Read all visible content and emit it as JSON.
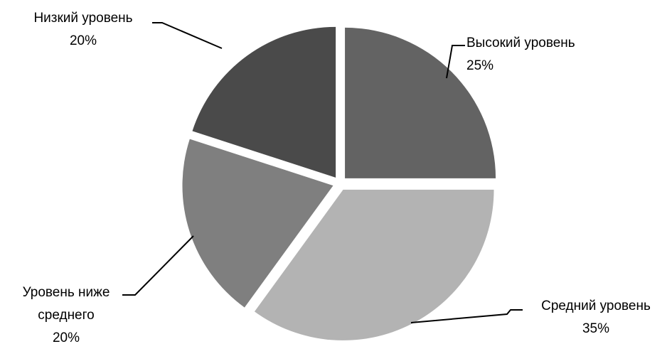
{
  "chart_data": {
    "type": "pie",
    "title": "",
    "start_angle_deg": 0,
    "direction": "clockwise",
    "legend": "none",
    "slices": [
      {
        "label": "Высокий уровень",
        "label_lines": [
          "Высокий уровень"
        ],
        "value": 25,
        "value_label": "25%",
        "color": "#636363"
      },
      {
        "label": "Средний уровень",
        "label_lines": [
          "Средний уровень"
        ],
        "value": 35,
        "value_label": "35%",
        "color": "#b3b3b3"
      },
      {
        "label": "Уровень ниже среднего",
        "label_lines": [
          "Уровень ниже",
          "среднего"
        ],
        "value": 20,
        "value_label": "20%",
        "color": "#7f7f7f"
      },
      {
        "label": "Низкий уровень",
        "label_lines": [
          "Низкий уровень"
        ],
        "value": 20,
        "value_label": "20%",
        "color": "#4a4a4a"
      }
    ]
  }
}
